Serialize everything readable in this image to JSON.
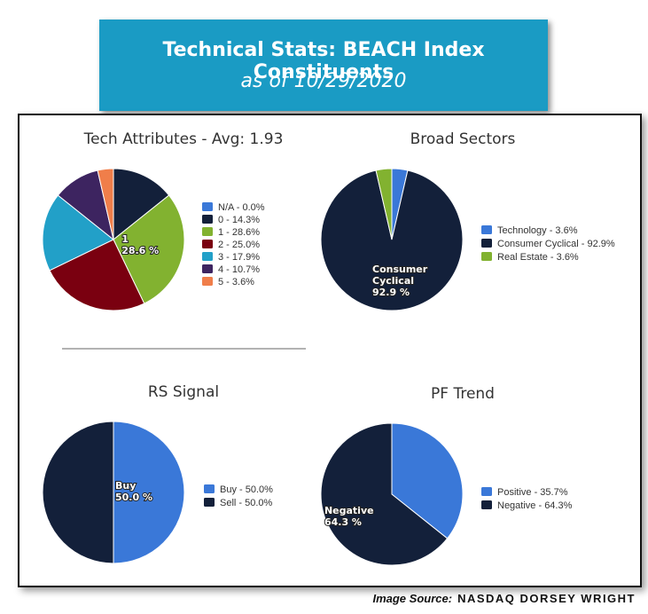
{
  "header": {
    "title": "Technical Stats: BEACH Index Constituents",
    "subtitle": "as of 10/29/2020"
  },
  "chart_data": [
    {
      "type": "pie",
      "title": "Tech Attributes - Avg: 1.93",
      "legend_labels": [
        "N/A - 0.0%",
        "0 - 14.3%",
        "1 - 28.6%",
        "2 - 25.0%",
        "3 - 17.9%",
        "4 - 10.7%",
        "5 - 3.6%"
      ],
      "values": [
        0.0,
        14.3,
        28.6,
        25.0,
        17.9,
        10.7,
        3.6
      ],
      "colors": [
        "#3a78d8",
        "#13203a",
        "#82b230",
        "#7a0010",
        "#22a0c8",
        "#3d2460",
        "#f07e4a"
      ],
      "slice_labels": [
        null,
        null,
        "1",
        null,
        null,
        null,
        null
      ],
      "value_labels": [
        null,
        null,
        "28.6 %",
        null,
        null,
        null,
        null
      ]
    },
    {
      "type": "pie",
      "title": "Broad Sectors",
      "legend_labels": [
        "Technology - 3.6%",
        "Consumer Cyclical - 92.9%",
        "Real Estate - 3.6%"
      ],
      "values": [
        3.6,
        92.9,
        3.6
      ],
      "colors": [
        "#3a78d8",
        "#13203a",
        "#82b230"
      ],
      "slice_labels": [
        null,
        "Consumer Cyclical",
        null
      ],
      "value_labels": [
        null,
        "92.9 %",
        null
      ]
    },
    {
      "type": "pie",
      "title": "RS Signal",
      "legend_labels": [
        "Buy - 50.0%",
        "Sell - 50.0%"
      ],
      "values": [
        50.0,
        50.0
      ],
      "colors": [
        "#3a78d8",
        "#13203a"
      ],
      "slice_labels": [
        "Buy",
        null
      ],
      "value_labels": [
        "50.0 %",
        null
      ]
    },
    {
      "type": "pie",
      "title": "PF Trend",
      "legend_labels": [
        "Positive - 35.7%",
        "Negative - 64.3%"
      ],
      "values": [
        35.7,
        64.3
      ],
      "colors": [
        "#3a78d8",
        "#13203a"
      ],
      "slice_labels": [
        null,
        "Negative"
      ],
      "value_labels": [
        null,
        "64.3 %"
      ]
    }
  ],
  "source": {
    "prefix": "Image Source:",
    "name": "NASDAQ DORSEY WRIGHT"
  }
}
